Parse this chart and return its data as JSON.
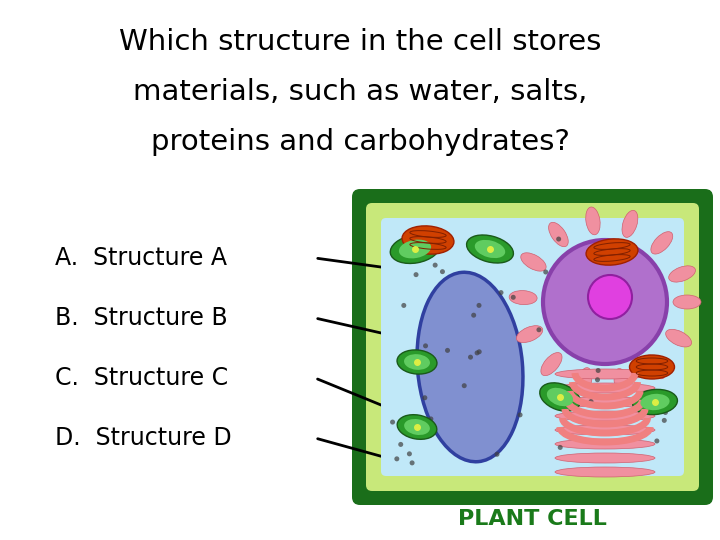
{
  "title_lines": [
    "Which structure in the cell stores",
    "materials, such as water, salts,",
    "proteins and carbohydrates?"
  ],
  "choices": [
    "A.  Structure A",
    "B.  Structure B",
    "C.  Structure C",
    "D.  Structure D"
  ],
  "bg_color": "#ffffff",
  "title_color": "#000000",
  "label_color": "#1a7a1a",
  "plant_cell_label": "PLANT CELL",
  "cell_outer_color": "#1a6e1a",
  "cell_mid_color": "#c8e87a",
  "cell_inner_color": "#c0e8f8",
  "vacuole_face": "#8090d0",
  "vacuole_edge": "#3040a0",
  "nucleus_face": "#b070cc",
  "nucleus_edge": "#8840aa",
  "nucleolus_face": "#e040e0",
  "nucleolus_edge": "#9020a0",
  "chloro_outer": "#2a9a2a",
  "chloro_inner": "#60cc60",
  "mito_face": "#d04000",
  "mito_edge": "#a02000",
  "golgi_face": "#f08080",
  "golgi_edge": "#cc4060",
  "er_face": "#f090a0",
  "er_edge": "#d06070",
  "dot_color": "#404040"
}
